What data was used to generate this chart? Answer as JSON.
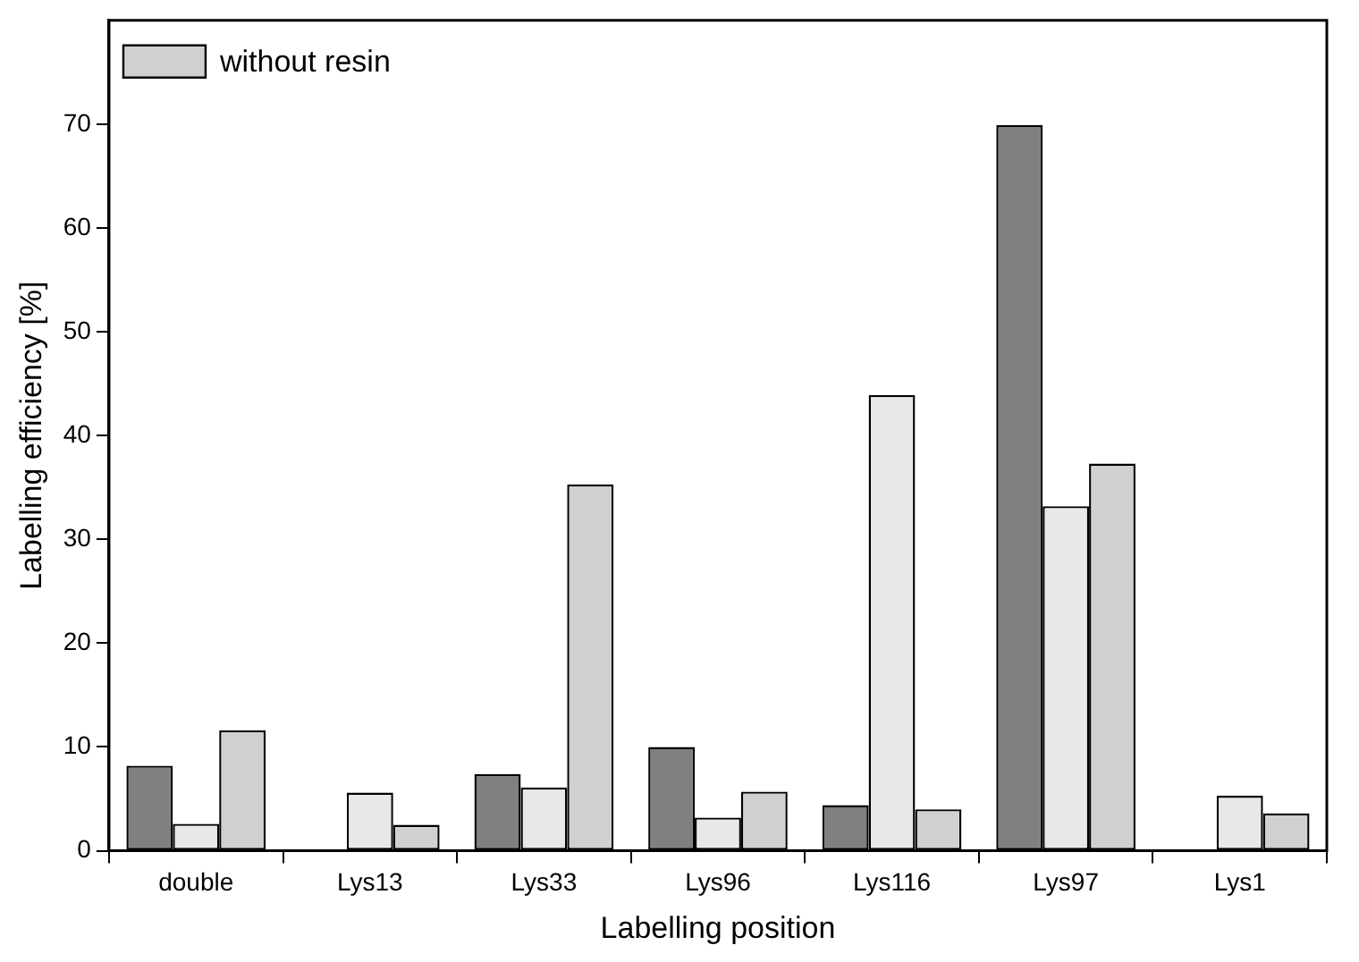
{
  "chart_data": {
    "type": "bar",
    "xlabel": "Labelling position",
    "ylabel": "Labelling efficiency [%]",
    "categories": [
      "double",
      "Lys13",
      "Lys33",
      "Lys96",
      "Lys116",
      "Lys97",
      "Lys1"
    ],
    "series": [
      {
        "color": "#808080",
        "values": [
          8.2,
          null,
          7.4,
          10.0,
          4.4,
          69.9,
          null
        ]
      },
      {
        "color": "#e8e8e8",
        "values": [
          2.6,
          5.6,
          6.1,
          3.2,
          43.9,
          33.2,
          5.3
        ]
      },
      {
        "name": "without resin",
        "color": "#d0d0d0",
        "values": [
          11.6,
          2.5,
          35.3,
          5.7,
          4.0,
          37.3,
          3.6
        ]
      }
    ],
    "ylim": [
      0,
      80
    ],
    "yticks": [
      0,
      10,
      20,
      30,
      40,
      50,
      60,
      70
    ],
    "grid": false,
    "legend": "top left"
  }
}
